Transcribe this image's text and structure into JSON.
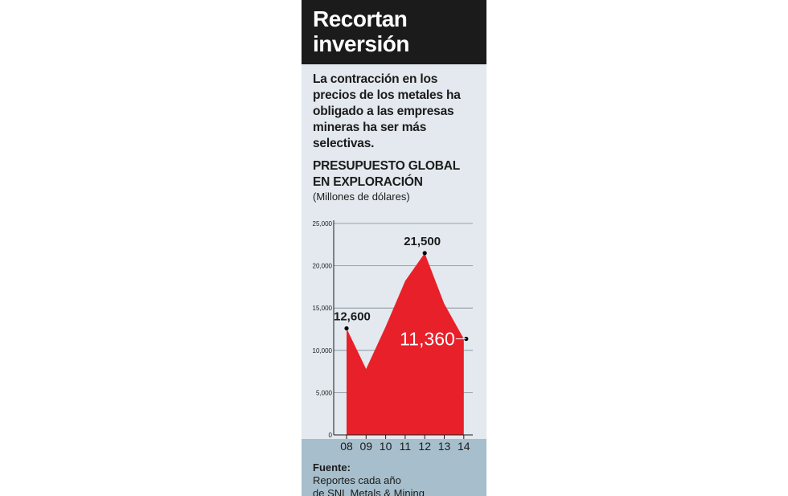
{
  "header": {
    "title_line1": "Recortan",
    "title_line2": "inversión"
  },
  "subtitle": "La contracción en los precios de los metales ha obligado a las empresas mineras ha ser más selectivas.",
  "chart_title_line1": "PRESUPUESTO GLOBAL",
  "chart_title_line2": "EN EXPLORACIÓN",
  "chart_unit": "(Millones de dólares)",
  "source": {
    "label": "Fuente:",
    "text_line1": " Reportes cada año",
    "text_line2": "de SNL Metals & Mining"
  },
  "colors": {
    "panel": "#e3e9ee",
    "header": "#1b1b1b",
    "footer": "#a7bfcc",
    "area": "#e8202a"
  },
  "chart_data": {
    "type": "area",
    "x": [
      "08",
      "09",
      "10",
      "11",
      "12",
      "13",
      "14"
    ],
    "values": [
      12600,
      7800,
      12800,
      18200,
      21500,
      15500,
      11360
    ],
    "ylim": [
      0,
      25000
    ],
    "yticks": [
      0,
      5000,
      10000,
      15000,
      20000,
      25000
    ],
    "ytick_labels": [
      "0",
      "5,000",
      "10,000",
      "15,000",
      "20,000",
      "25,000"
    ],
    "grid": true,
    "annotations": [
      {
        "label": "12,600",
        "index": 0,
        "style": "dark"
      },
      {
        "label": "21,500",
        "index": 4,
        "style": "dark"
      },
      {
        "label": "11,360",
        "index": 6,
        "style": "light"
      }
    ]
  }
}
